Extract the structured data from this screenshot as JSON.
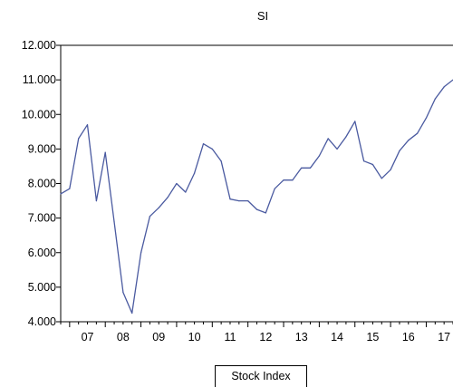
{
  "chart_data": {
    "type": "line",
    "title": "SI",
    "xlabel": "",
    "ylabel": "",
    "legend": {
      "label": "Stock Index",
      "placement": "bottom-center"
    },
    "xlim": [
      2006.75,
      2017.75
    ],
    "ylim": [
      4000,
      12000
    ],
    "grid": false,
    "line_color": "#4a5aa0",
    "y_ticks": [
      4000,
      5000,
      6000,
      7000,
      8000,
      9000,
      10000,
      11000,
      12000
    ],
    "y_tick_labels": [
      "4.000",
      "5.000",
      "6.000",
      "7.000",
      "8.000",
      "9.000",
      "10.000",
      "11.000",
      "12.000"
    ],
    "x_tick_labels": [
      "07",
      "08",
      "09",
      "10",
      "11",
      "12",
      "13",
      "14",
      "15",
      "16",
      "17"
    ],
    "x_tick_positions": [
      2007,
      2008,
      2009,
      2010,
      2011,
      2012,
      2013,
      2014,
      2015,
      2016,
      2017
    ],
    "series": [
      {
        "x": [
          2006.75,
          2007.0,
          2007.25,
          2007.5,
          2007.75,
          2008.0,
          2008.25,
          2008.5,
          2008.75,
          2009.0,
          2009.25,
          2009.5,
          2009.75,
          2010.0,
          2010.25,
          2010.5,
          2010.75,
          2011.0,
          2011.25,
          2011.5,
          2011.75,
          2012.0,
          2012.25,
          2012.5,
          2012.75,
          2013.0,
          2013.25,
          2013.5,
          2013.75,
          2014.0,
          2014.25,
          2014.5,
          2014.75,
          2015.0,
          2015.25,
          2015.5,
          2015.75,
          2016.0,
          2016.25,
          2016.5,
          2016.75,
          2017.0,
          2017.25,
          2017.5,
          2017.75
        ],
        "values": [
          7700,
          7850,
          9300,
          9700,
          7500,
          8900,
          6900,
          4850,
          4250,
          6000,
          7050,
          7300,
          7600,
          8000,
          7750,
          8300,
          9150,
          9000,
          8650,
          7550,
          7500,
          7500,
          7250,
          7150,
          7850,
          8100,
          8100,
          8450,
          8450,
          8800,
          9300,
          9000,
          9350,
          9800,
          8650,
          8550,
          8150,
          8400,
          8950,
          9250,
          9450,
          9900,
          10450,
          10800,
          11000
        ]
      }
    ]
  }
}
